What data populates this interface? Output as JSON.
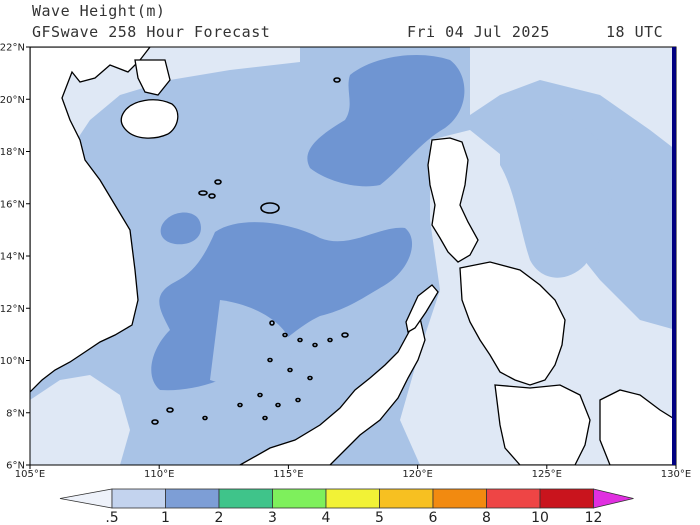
{
  "header": {
    "title": "Wave Height(m)",
    "model": "GFSwave 258 Hour Forecast",
    "date": "Fri 04 Jul 2025",
    "hour": "18 UTC"
  },
  "map": {
    "lat_ticks": [
      "22°N",
      "20°N",
      "18°N",
      "16°N",
      "14°N",
      "12°N",
      "10°N",
      "8°N",
      "6°N"
    ],
    "lon_ticks": [
      "105°E",
      "110°E",
      "115°E",
      "120°E",
      "125°E",
      "130°E"
    ],
    "lon_range": [
      105,
      130
    ],
    "lat_range": [
      6,
      22
    ],
    "fill_colors": {
      "land": "#ffffff",
      "lt_0_5": "#eef2fa",
      "0_5_to_1": "#dfe8f5",
      "1_to_2": "#a9c3e6",
      "2_to_3": "#6f95d2",
      "coastline": "#000000"
    }
  },
  "colorbar": {
    "labels": [
      ".5",
      "1",
      "2",
      "3",
      "4",
      "5",
      "6",
      "8",
      "10",
      "12"
    ],
    "colors": [
      "#eef2fa",
      "#c3d3ee",
      "#7d9ed6",
      "#3fc48a",
      "#7ef05c",
      "#f2f236",
      "#f7c021",
      "#f28a10",
      "#ee4545",
      "#c9141d",
      "#e02fe0"
    ]
  }
}
